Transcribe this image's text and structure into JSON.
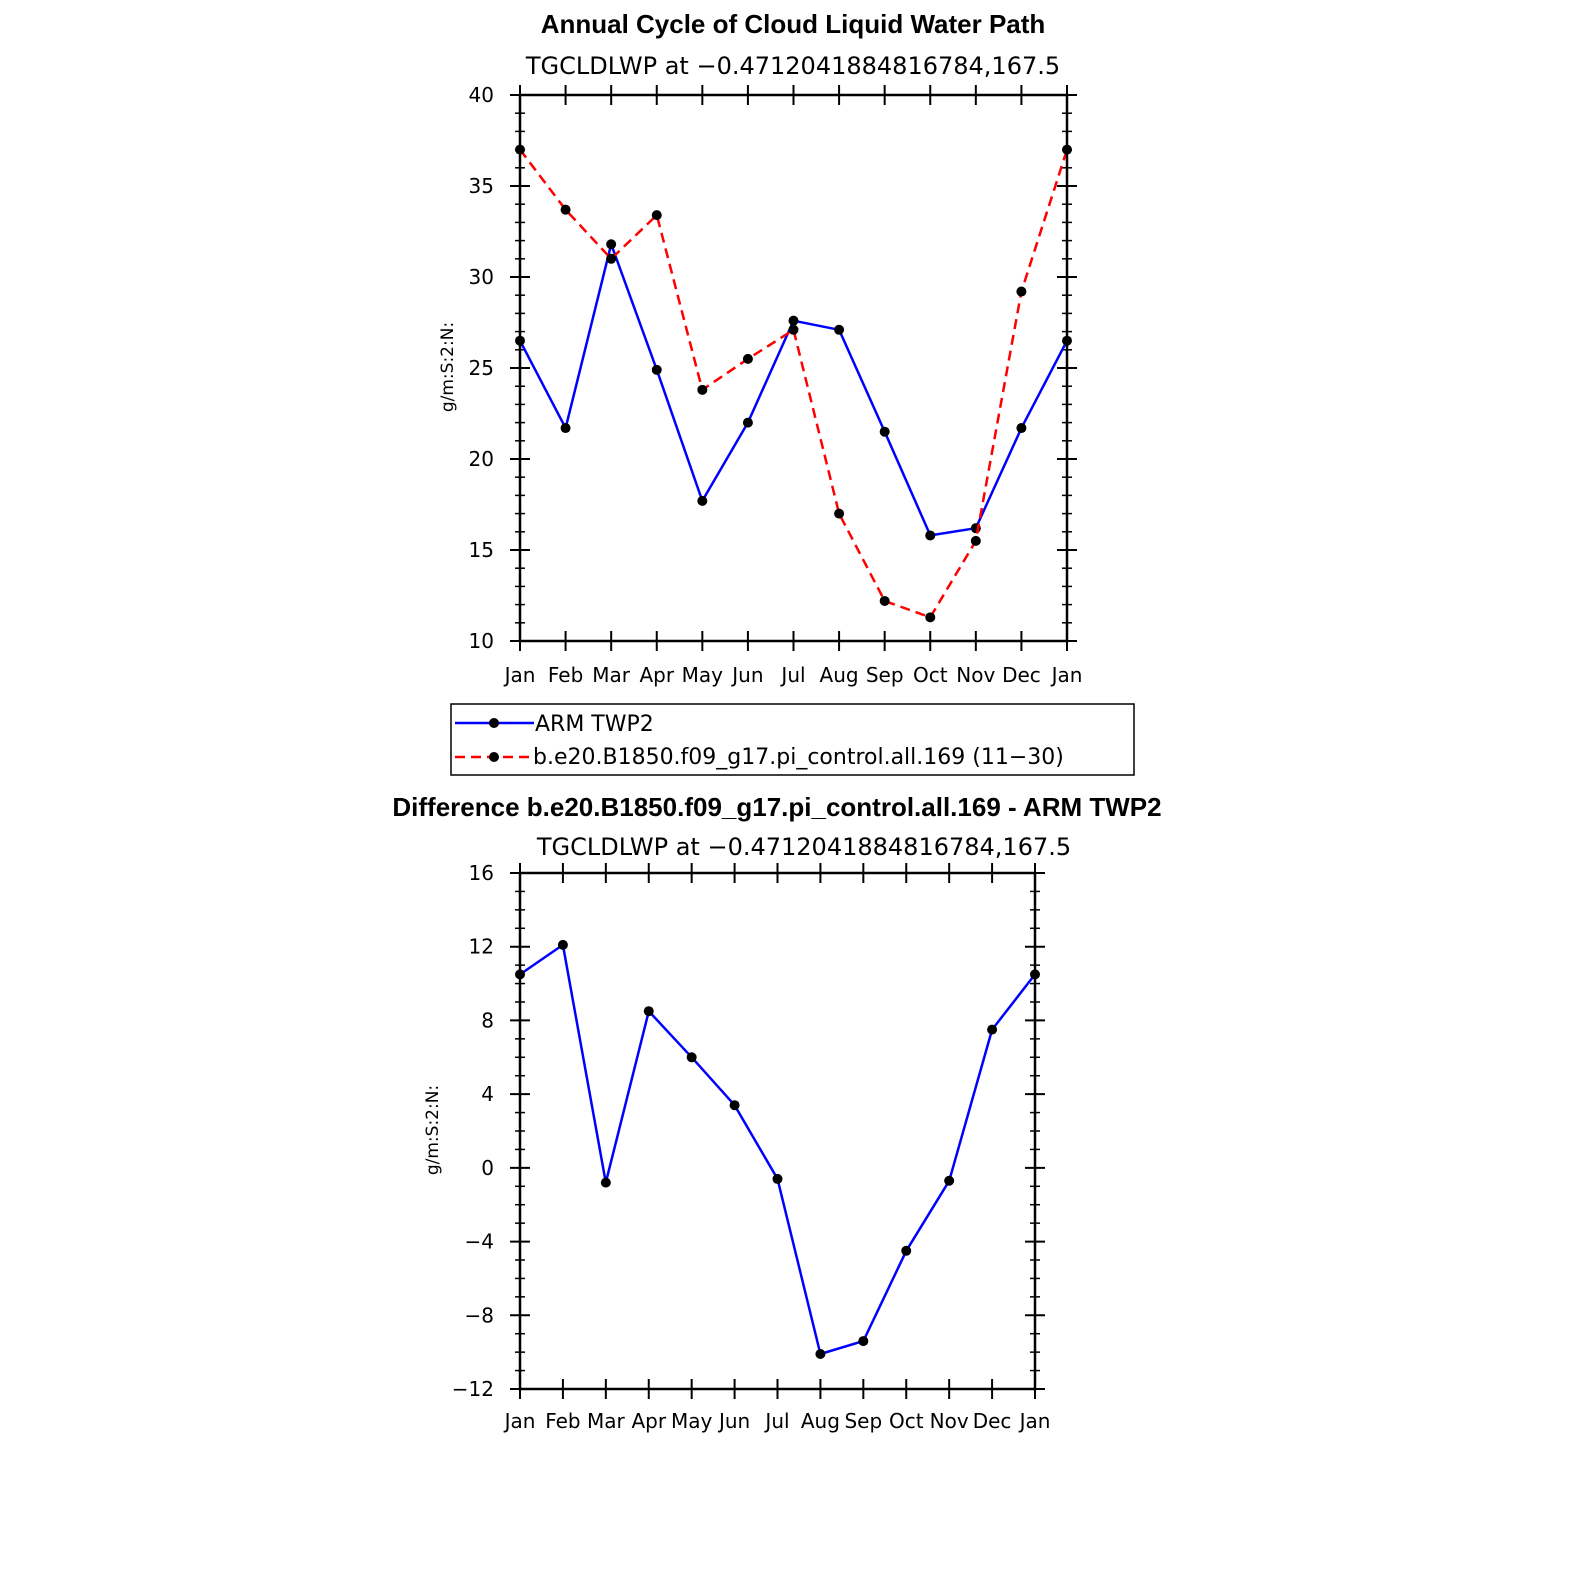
{
  "chart_data": [
    {
      "type": "line",
      "title": "Annual Cycle of Cloud Liquid Water Path",
      "subtitle": "TGCLDLWP at −0.4712041884816784,167.5",
      "xlabel": "",
      "ylabel": "g/m:S:2:N:",
      "categories": [
        "Jan",
        "Feb",
        "Mar",
        "Apr",
        "May",
        "Jun",
        "Jul",
        "Aug",
        "Sep",
        "Oct",
        "Nov",
        "Dec",
        "Jan"
      ],
      "ylim": [
        10,
        40
      ],
      "yticks": [
        "10",
        "15",
        "20",
        "25",
        "30",
        "35",
        "40"
      ],
      "series": [
        {
          "name": "ARM TWP2",
          "color": "#0000ff",
          "dash": "solid",
          "values": [
            26.5,
            21.7,
            31.8,
            24.9,
            17.7,
            22.0,
            27.6,
            27.1,
            21.5,
            15.8,
            16.2,
            21.7,
            26.5
          ]
        },
        {
          "name": "b.e20.B1850.f09_g17.pi_control.all.169 (11−30)",
          "color": "#ff0000",
          "dash": "dashed",
          "values": [
            37.0,
            33.7,
            31.0,
            33.4,
            23.8,
            25.5,
            27.1,
            17.0,
            12.2,
            11.3,
            15.5,
            29.2,
            37.0
          ]
        }
      ],
      "legend": "below"
    },
    {
      "type": "line",
      "title": "Difference b.e20.B1850.f09_g17.pi_control.all.169 - ARM TWP2",
      "subtitle": "TGCLDLWP at −0.4712041884816784,167.5",
      "xlabel": "",
      "ylabel": "g/m:S:2:N:",
      "categories": [
        "Jan",
        "Feb",
        "Mar",
        "Apr",
        "May",
        "Jun",
        "Jul",
        "Aug",
        "Sep",
        "Oct",
        "Nov",
        "Dec",
        "Jan"
      ],
      "ylim": [
        -12,
        16
      ],
      "yticks": [
        "−12",
        "−8",
        "−4",
        "0",
        "4",
        "8",
        "12",
        "16"
      ],
      "series": [
        {
          "name": "Difference",
          "color": "#0000ff",
          "dash": "solid",
          "values": [
            10.5,
            12.1,
            -0.8,
            8.5,
            6.0,
            3.4,
            -0.6,
            -10.1,
            -9.4,
            -4.5,
            -0.7,
            7.5,
            10.5
          ]
        }
      ]
    }
  ],
  "colors": {
    "axis": "#000000",
    "marker": "#000000"
  }
}
